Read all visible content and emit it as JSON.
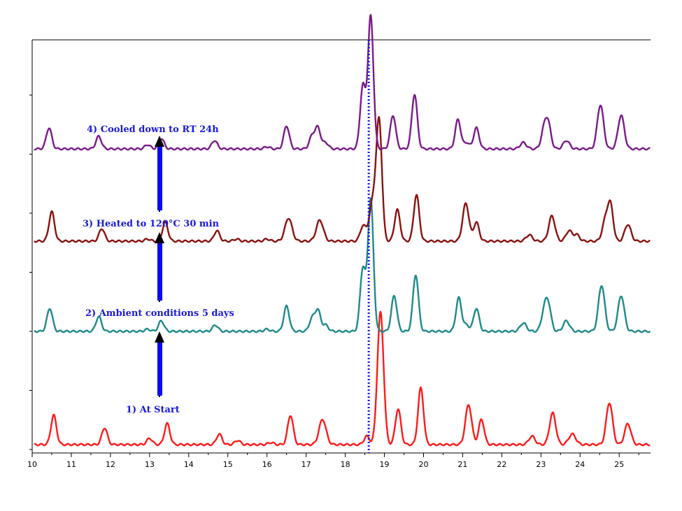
{
  "chart_data": {
    "type": "line",
    "xlim": [
      10,
      25.8
    ],
    "x_ticks": [
      10,
      11,
      12,
      13,
      14,
      15,
      16,
      17,
      18,
      19,
      20,
      21,
      22,
      23,
      24,
      25
    ],
    "y_axis_labels": false,
    "reference_line": {
      "x": 18.6,
      "color": "#1a1ad6",
      "style": "dotted"
    },
    "series": [
      {
        "color": "#ff1a1a",
        "offset": 0.0,
        "peaks": [
          [
            10.55,
            0.14,
            0.07
          ],
          [
            11.85,
            0.08,
            0.07
          ],
          [
            13.0,
            0.03,
            0.07
          ],
          [
            13.45,
            0.1,
            0.07
          ],
          [
            14.78,
            0.05,
            0.07
          ],
          [
            15.25,
            0.02,
            0.07
          ],
          [
            16.1,
            0.01,
            0.07
          ],
          [
            16.6,
            0.14,
            0.07
          ],
          [
            17.42,
            0.12,
            0.09
          ],
          [
            18.55,
            0.04,
            0.07
          ],
          [
            18.9,
            0.63,
            0.08
          ],
          [
            19.35,
            0.17,
            0.07
          ],
          [
            19.93,
            0.27,
            0.07
          ],
          [
            21.15,
            0.19,
            0.08
          ],
          [
            21.48,
            0.12,
            0.07
          ],
          [
            22.77,
            0.04,
            0.08
          ],
          [
            23.3,
            0.15,
            0.08
          ],
          [
            23.8,
            0.05,
            0.09
          ],
          [
            24.75,
            0.2,
            0.08
          ],
          [
            25.22,
            0.1,
            0.08
          ]
        ]
      },
      {
        "color": "#1f8a8a",
        "offset": 0.54,
        "peaks": [
          [
            10.45,
            0.11,
            0.07
          ],
          [
            11.7,
            0.07,
            0.07
          ],
          [
            12.95,
            0.01,
            0.07
          ],
          [
            13.3,
            0.05,
            0.07
          ],
          [
            14.68,
            0.03,
            0.07
          ],
          [
            16.0,
            0.01,
            0.07
          ],
          [
            16.5,
            0.12,
            0.07
          ],
          [
            17.15,
            0.06,
            0.07
          ],
          [
            17.3,
            0.1,
            0.07
          ],
          [
            17.5,
            0.03,
            0.07
          ],
          [
            18.45,
            0.3,
            0.07
          ],
          [
            18.65,
            0.63,
            0.07
          ],
          [
            19.25,
            0.17,
            0.07
          ],
          [
            19.8,
            0.27,
            0.07
          ],
          [
            20.9,
            0.16,
            0.07
          ],
          [
            21.1,
            0.03,
            0.07
          ],
          [
            21.35,
            0.11,
            0.07
          ],
          [
            22.55,
            0.04,
            0.08
          ],
          [
            23.1,
            0.11,
            0.08
          ],
          [
            23.2,
            0.09,
            0.07
          ],
          [
            23.65,
            0.05,
            0.08
          ],
          [
            24.55,
            0.22,
            0.08
          ],
          [
            25.05,
            0.17,
            0.08
          ]
        ]
      },
      {
        "color": "#8b1010",
        "offset": 0.97,
        "peaks": [
          [
            10.5,
            0.14,
            0.07
          ],
          [
            11.78,
            0.06,
            0.07
          ],
          [
            12.95,
            0.01,
            0.07
          ],
          [
            13.4,
            0.09,
            0.07
          ],
          [
            14.72,
            0.05,
            0.07
          ],
          [
            15.22,
            0.01,
            0.07
          ],
          [
            16.0,
            0.01,
            0.07
          ],
          [
            16.55,
            0.11,
            0.09
          ],
          [
            17.35,
            0.1,
            0.09
          ],
          [
            18.45,
            0.07,
            0.07
          ],
          [
            18.72,
            0.2,
            0.1
          ],
          [
            18.87,
            0.52,
            0.07
          ],
          [
            19.33,
            0.15,
            0.07
          ],
          [
            19.82,
            0.22,
            0.07
          ],
          [
            21.08,
            0.18,
            0.08
          ],
          [
            21.35,
            0.09,
            0.07
          ],
          [
            22.7,
            0.03,
            0.08
          ],
          [
            23.28,
            0.12,
            0.08
          ],
          [
            23.72,
            0.05,
            0.08
          ],
          [
            23.92,
            0.03,
            0.07
          ],
          [
            24.65,
            0.1,
            0.08
          ],
          [
            24.78,
            0.16,
            0.07
          ],
          [
            25.22,
            0.08,
            0.08
          ]
        ]
      },
      {
        "color": "#7a1a8a",
        "offset": 1.41,
        "peaks": [
          [
            10.43,
            0.1,
            0.07
          ],
          [
            11.7,
            0.06,
            0.07
          ],
          [
            12.95,
            0.02,
            0.07
          ],
          [
            13.3,
            0.05,
            0.07
          ],
          [
            14.66,
            0.04,
            0.07
          ],
          [
            16.0,
            0.01,
            0.07
          ],
          [
            16.5,
            0.11,
            0.07
          ],
          [
            17.15,
            0.06,
            0.07
          ],
          [
            17.3,
            0.1,
            0.07
          ],
          [
            17.5,
            0.03,
            0.07
          ],
          [
            18.45,
            0.3,
            0.07
          ],
          [
            18.65,
            0.63,
            0.07
          ],
          [
            19.22,
            0.16,
            0.07
          ],
          [
            19.77,
            0.26,
            0.07
          ],
          [
            20.88,
            0.14,
            0.07
          ],
          [
            21.1,
            0.03,
            0.07
          ],
          [
            21.35,
            0.1,
            0.07
          ],
          [
            22.55,
            0.03,
            0.08
          ],
          [
            23.1,
            0.11,
            0.08
          ],
          [
            23.2,
            0.08,
            0.07
          ],
          [
            23.65,
            0.04,
            0.08
          ],
          [
            24.52,
            0.21,
            0.08
          ],
          [
            25.05,
            0.16,
            0.08
          ]
        ]
      }
    ]
  },
  "annotations": [
    {
      "label": "1)  At Start"
    },
    {
      "label": "2)  Ambient conditions 5 days"
    },
    {
      "label": "3)   Heated to 120°C 30 min"
    },
    {
      "label": "4)    Cooled down to RT 24h"
    }
  ]
}
